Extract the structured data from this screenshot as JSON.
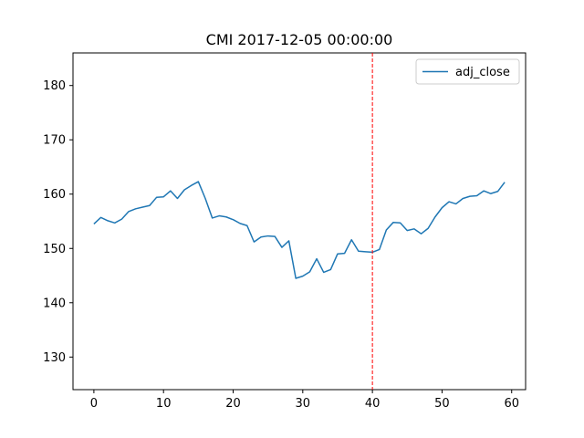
{
  "chart_data": {
    "type": "line",
    "title": "CMI 2017-12-05 00:00:00",
    "xlabel": "",
    "ylabel": "",
    "xlim": [
      -3,
      62
    ],
    "ylim": [
      124,
      186
    ],
    "xticks": [
      0,
      10,
      20,
      30,
      40,
      50,
      60
    ],
    "yticks": [
      130,
      140,
      150,
      160,
      170,
      180
    ],
    "grid": false,
    "legend_position": "top-right",
    "series": [
      {
        "name": "adj_close",
        "color": "#1f77b4",
        "x": [
          0,
          1,
          2,
          3,
          4,
          5,
          6,
          7,
          8,
          9,
          10,
          11,
          12,
          13,
          14,
          15,
          16,
          17,
          18,
          19,
          20,
          21,
          22,
          23,
          24,
          25,
          26,
          27,
          28,
          29,
          30,
          31,
          32,
          33,
          34,
          35,
          36,
          37,
          38,
          39,
          40,
          41,
          42,
          43,
          44,
          45,
          46,
          47,
          48,
          49,
          50,
          51,
          52,
          53,
          54,
          55,
          56,
          57,
          58,
          59
        ],
        "values": [
          154.5,
          155.7,
          155.1,
          154.7,
          155.4,
          156.8,
          157.3,
          157.6,
          157.9,
          159.4,
          159.5,
          160.6,
          159.2,
          160.8,
          161.6,
          162.3,
          159.2,
          155.6,
          156.0,
          155.8,
          155.3,
          154.6,
          154.2,
          151.2,
          152.1,
          152.3,
          152.2,
          150.2,
          151.4,
          144.5,
          144.9,
          145.7,
          148.1,
          145.6,
          146.1,
          149.0,
          149.1,
          151.6,
          149.5,
          149.4,
          149.3,
          149.8,
          153.4,
          154.8,
          154.7,
          153.3,
          153.6,
          152.7,
          153.7,
          155.8,
          157.5,
          158.6,
          158.2,
          159.2,
          159.6,
          159.7,
          160.6,
          160.1,
          160.5,
          162.2
        ]
      }
    ],
    "annotations": [
      {
        "type": "vline",
        "x": 40,
        "color": "#ff0000",
        "style": "dashed"
      }
    ]
  }
}
